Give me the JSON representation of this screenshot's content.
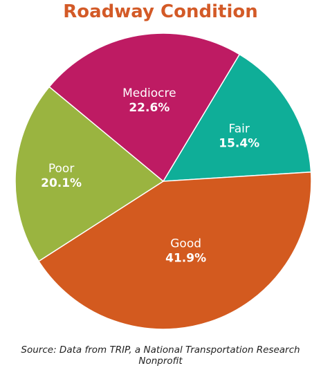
{
  "chart_data": {
    "type": "pie",
    "title": "Roadway Condition",
    "slices": [
      {
        "label": "Fair",
        "value": 15.4,
        "display": "15.4%",
        "color": "#0fae98"
      },
      {
        "label": "Good",
        "value": 41.9,
        "display": "41.9%",
        "color": "#d35a1f"
      },
      {
        "label": "Poor",
        "value": 20.1,
        "display": "20.1%",
        "color": "#9ab440"
      },
      {
        "label": "Mediocre",
        "value": 22.6,
        "display": "22.6%",
        "color": "#be1b63"
      }
    ],
    "source": "Source: Data from TRIP, a National Transportation Research Nonprofit"
  },
  "colors": {
    "title": "#d35a27",
    "slice_text": "#ffffff",
    "source_text": "#222222"
  }
}
